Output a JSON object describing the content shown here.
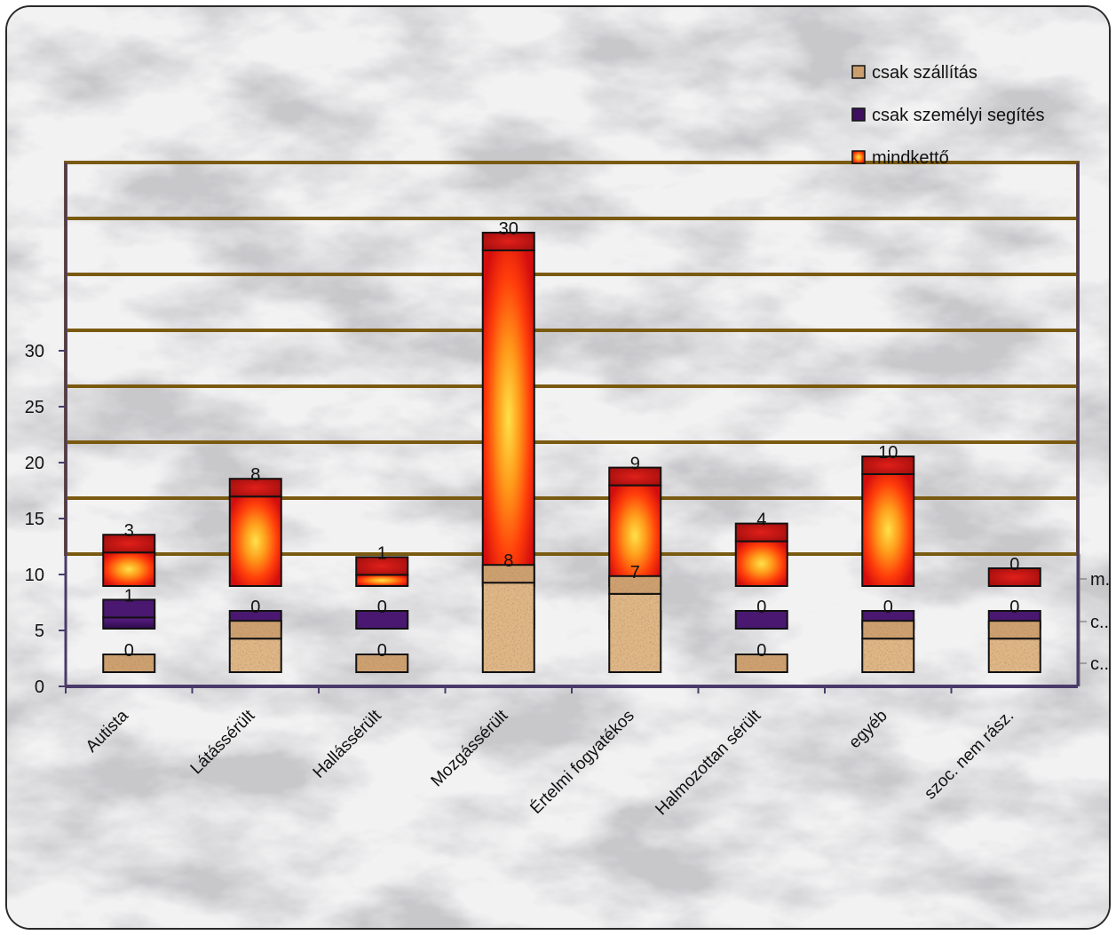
{
  "chart_data": {
    "type": "bar",
    "subtype": "3d-stacked-depth",
    "categories": [
      "Autista",
      "Látássérült",
      "Hallássérült",
      "Mozgássérült",
      "Értelmi fogyatékos",
      "Halmozottan sérült",
      "egyéb",
      "szoc. nem rász."
    ],
    "series": [
      {
        "name": "csak szállítás",
        "values": [
          0,
          3,
          0,
          8,
          7,
          0,
          3,
          3
        ],
        "point_labels": [
          "0",
          "",
          "0",
          "8",
          "7",
          "0",
          "",
          ""
        ],
        "color": "#c08a5a",
        "fill": "cork"
      },
      {
        "name": "csak személyi segítés",
        "values": [
          1,
          0,
          0,
          0,
          0,
          0,
          0,
          0
        ],
        "point_labels": [
          "1",
          "0",
          "0",
          "0",
          "0",
          "0",
          "0",
          "0"
        ],
        "color": "#3d0f5e",
        "fill": "solid"
      },
      {
        "name": "mindkettő",
        "values": [
          3,
          8,
          1,
          30,
          9,
          4,
          10,
          0
        ],
        "point_labels": [
          "3",
          "8",
          "1",
          "30",
          "9",
          "4",
          "10",
          "0"
        ],
        "color": "#ff6a00",
        "fill": "radial-fire"
      }
    ],
    "y_ticks": [
      0,
      5,
      10,
      15,
      20,
      25,
      30
    ],
    "ylim": [
      0,
      35
    ],
    "depth_axis_labels": [
      "m...",
      "c...",
      "c..."
    ],
    "legend_position": "top-right",
    "grid": true,
    "background": "marble",
    "gridline_color": "#7a5a10",
    "axis_color": "#4a3a6a"
  }
}
